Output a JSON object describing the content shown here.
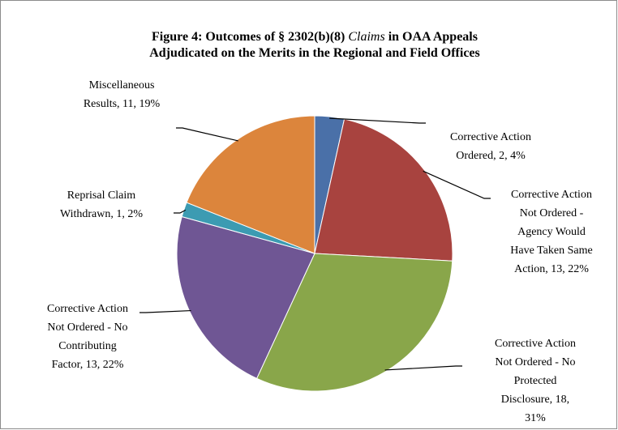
{
  "chart_data": {
    "type": "pie",
    "title": [
      [
        "Figure 4: Outcomes of § 2302(b)(8) ",
        "Claims",
        " in OAA Appeals"
      ],
      [
        "Adjudicated on the Merits in the Regional and Field Offices"
      ]
    ],
    "values": [
      2,
      13,
      18,
      13,
      1,
      11
    ],
    "colors": [
      "#4a70a8",
      "#a8433f",
      "#89a64a",
      "#6f5694",
      "#3c9bb2",
      "#dc853c"
    ],
    "value_labels": [
      [
        "Corrective Action",
        "Ordered, 2, 4%"
      ],
      [
        "Corrective Action",
        "Not Ordered -",
        "Agency Would",
        "Have Taken Same",
        "Action, 13, 22%"
      ],
      [
        "Corrective Action",
        "Not Ordered - No",
        "Protected",
        "Disclosure, 18,",
        "31%"
      ],
      [
        "Corrective Action",
        "Not Ordered - No",
        "Contributing",
        "Factor, 13, 22%"
      ],
      [
        "Reprisal Claim",
        "Withdrawn, 1, 2%"
      ],
      [
        "Miscellaneous",
        "Results, 11, 19%"
      ]
    ]
  }
}
